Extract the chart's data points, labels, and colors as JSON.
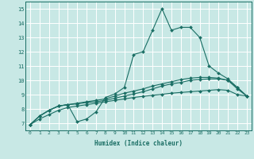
{
  "xlabel": "Humidex (Indice chaleur)",
  "xlim": [
    -0.5,
    23.5
  ],
  "ylim": [
    6.5,
    15.5
  ],
  "xticks": [
    0,
    1,
    2,
    3,
    4,
    5,
    6,
    7,
    8,
    9,
    10,
    11,
    12,
    13,
    14,
    15,
    16,
    17,
    18,
    19,
    20,
    21,
    22,
    23
  ],
  "yticks": [
    7,
    8,
    9,
    10,
    11,
    12,
    13,
    14,
    15
  ],
  "bg_color": "#c8e8e5",
  "line_color": "#1a6e64",
  "grid_color": "#ffffff",
  "line1_x": [
    0,
    1,
    2,
    3,
    4,
    5,
    6,
    7,
    8,
    9,
    10,
    11,
    12,
    13,
    14,
    15,
    16,
    17,
    18,
    19,
    20,
    21,
    22,
    23
  ],
  "line1_y": [
    6.9,
    7.5,
    7.9,
    8.2,
    8.3,
    7.1,
    7.3,
    7.8,
    8.8,
    9.05,
    9.5,
    11.8,
    12.0,
    13.5,
    15.0,
    13.5,
    13.7,
    13.7,
    13.0,
    11.0,
    10.5,
    10.1,
    9.5,
    8.9
  ],
  "line2_x": [
    0,
    1,
    2,
    3,
    4,
    5,
    6,
    7,
    8,
    9,
    10,
    11,
    12,
    13,
    14,
    15,
    16,
    17,
    18,
    19,
    20,
    21,
    22,
    23
  ],
  "line2_y": [
    6.9,
    7.5,
    7.9,
    8.2,
    8.3,
    8.4,
    8.5,
    8.6,
    8.7,
    8.9,
    9.1,
    9.25,
    9.4,
    9.6,
    9.75,
    9.9,
    10.05,
    10.15,
    10.2,
    10.2,
    10.15,
    10.0,
    9.5,
    8.9
  ],
  "line3_x": [
    0,
    1,
    2,
    3,
    4,
    5,
    6,
    7,
    8,
    9,
    10,
    11,
    12,
    13,
    14,
    15,
    16,
    17,
    18,
    19,
    20,
    21,
    22,
    23
  ],
  "line3_y": [
    6.9,
    7.5,
    7.9,
    8.2,
    8.3,
    8.35,
    8.45,
    8.5,
    8.6,
    8.75,
    8.9,
    9.05,
    9.2,
    9.4,
    9.6,
    9.75,
    9.85,
    10.0,
    10.05,
    10.1,
    10.1,
    10.0,
    9.4,
    8.9
  ],
  "line4_x": [
    0,
    1,
    2,
    3,
    4,
    5,
    6,
    7,
    8,
    9,
    10,
    11,
    12,
    13,
    14,
    15,
    16,
    17,
    18,
    19,
    20,
    21,
    22,
    23
  ],
  "line4_y": [
    6.9,
    7.3,
    7.6,
    7.9,
    8.1,
    8.2,
    8.3,
    8.4,
    8.5,
    8.6,
    8.7,
    8.8,
    8.88,
    8.95,
    9.02,
    9.1,
    9.15,
    9.2,
    9.25,
    9.3,
    9.35,
    9.3,
    9.0,
    8.9
  ]
}
